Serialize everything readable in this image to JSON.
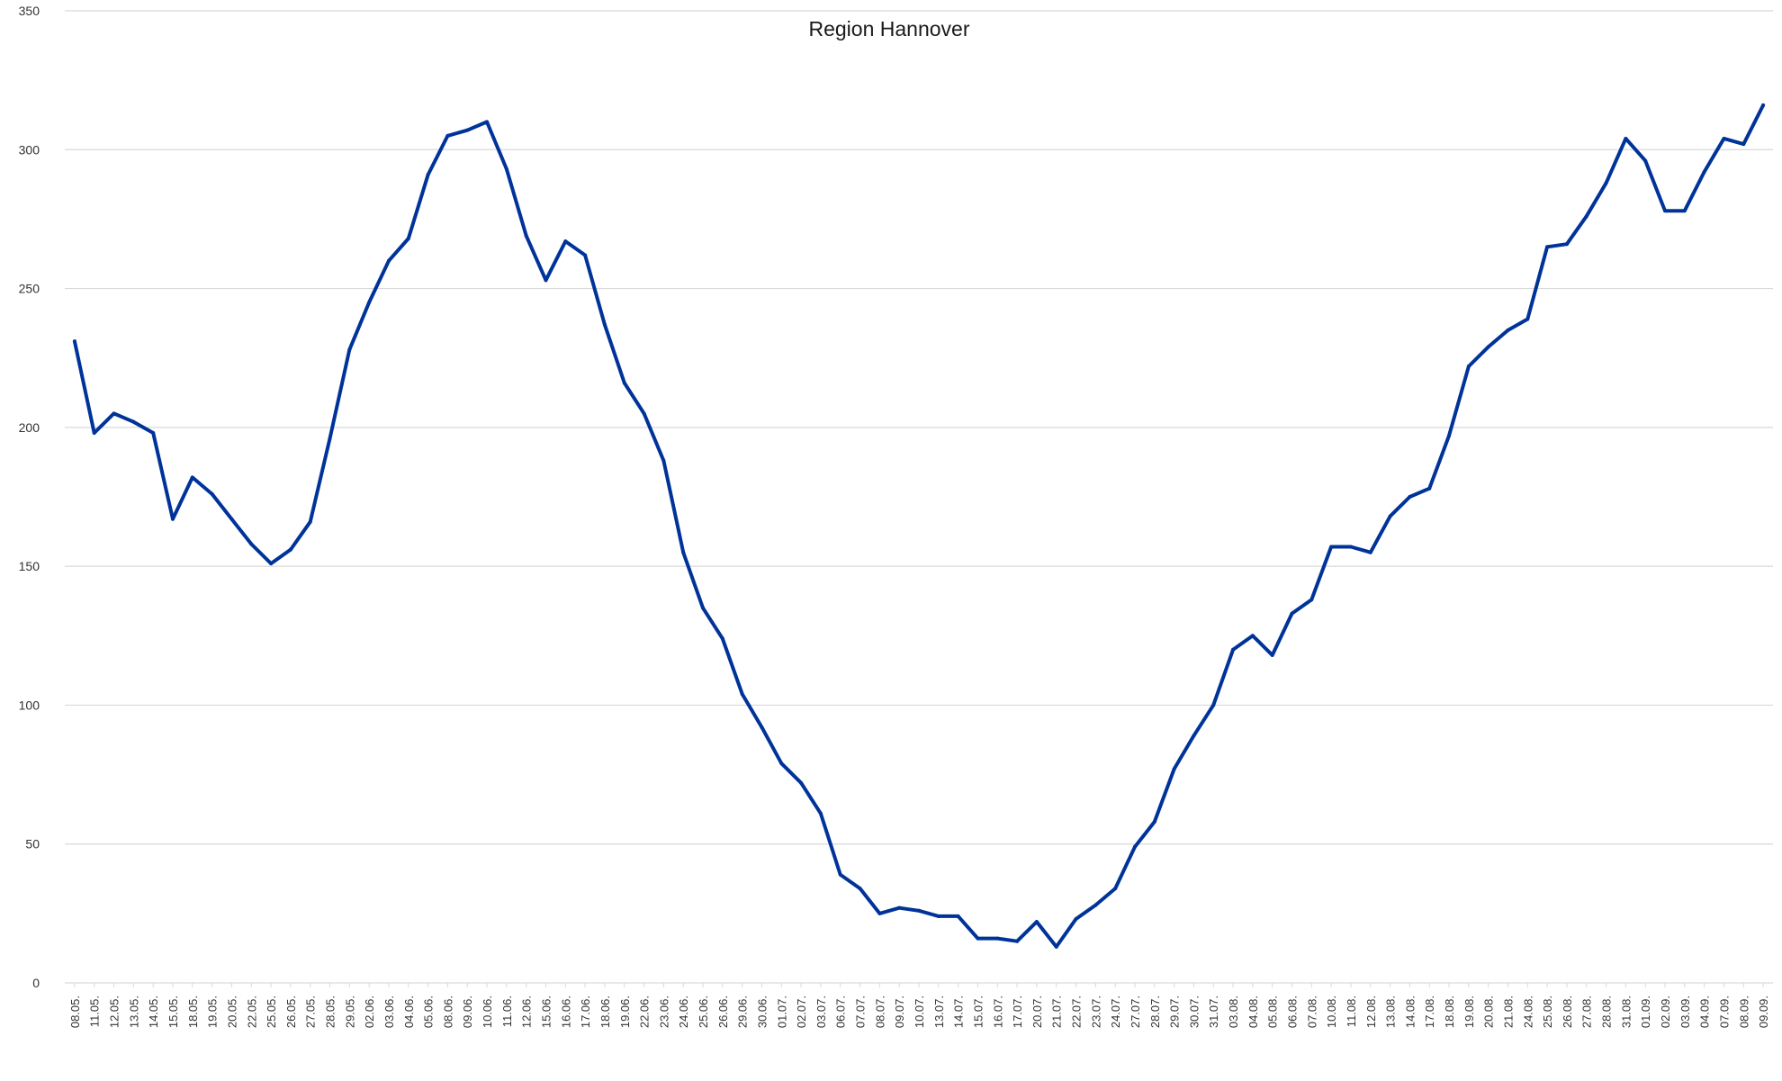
{
  "chart_data": {
    "type": "line",
    "title": "Region Hannover",
    "xlabel": "",
    "ylabel": "",
    "ylim": [
      0,
      350
    ],
    "yticks": [
      0,
      50,
      100,
      150,
      200,
      250,
      300,
      350
    ],
    "grid": true,
    "legend": "none",
    "colors": {
      "line": "#003399",
      "grid": "#d9d9d9"
    },
    "categories": [
      "08.05.",
      "11.05.",
      "12.05.",
      "13.05.",
      "14.05.",
      "15.05.",
      "18.05.",
      "19.05.",
      "20.05.",
      "22.05.",
      "25.05.",
      "26.05.",
      "27.05.",
      "28.05.",
      "29.05.",
      "02.06.",
      "03.06.",
      "04.06.",
      "05.06.",
      "08.06.",
      "09.06.",
      "10.06.",
      "11.06.",
      "12.06.",
      "15.06.",
      "16.06.",
      "17.06.",
      "18.06.",
      "19.06.",
      "22.06.",
      "23.06.",
      "24.06.",
      "25.06.",
      "26.06.",
      "29.06.",
      "30.06.",
      "01.07.",
      "02.07.",
      "03.07.",
      "06.07.",
      "07.07.",
      "08.07.",
      "09.07.",
      "10.07.",
      "13.07.",
      "14.07.",
      "15.07.",
      "16.07.",
      "17.07.",
      "20.07.",
      "21.07.",
      "22.07.",
      "23.07.",
      "24.07.",
      "27.07.",
      "28.07.",
      "29.07.",
      "30.07.",
      "31.07.",
      "03.08.",
      "04.08.",
      "05.08.",
      "06.08.",
      "07.08.",
      "10.08.",
      "11.08.",
      "12.08.",
      "13.08.",
      "14.08.",
      "17.08.",
      "18.08.",
      "19.08.",
      "20.08.",
      "21.08.",
      "24.08.",
      "25.08.",
      "26.08.",
      "27.08.",
      "28.08.",
      "31.08.",
      "01.09.",
      "02.09.",
      "03.09.",
      "04.09.",
      "07.09.",
      "08.09.",
      "09.09."
    ],
    "series": [
      {
        "values": [
          231,
          198,
          205,
          202,
          198,
          167,
          182,
          176,
          167,
          158,
          151,
          156,
          166,
          196,
          228,
          245,
          260,
          268,
          291,
          305,
          307,
          310,
          293,
          269,
          253,
          267,
          262,
          237,
          216,
          205,
          188,
          155,
          135,
          124,
          104,
          92,
          79,
          72,
          61,
          39,
          34,
          25,
          27,
          26,
          24,
          24,
          16,
          16,
          15,
          22,
          13,
          23,
          28,
          34,
          49,
          58,
          77,
          89,
          100,
          120,
          125,
          118,
          133,
          138,
          157,
          157,
          155,
          168,
          175,
          178,
          197,
          222,
          229,
          235,
          239,
          265,
          266,
          276,
          288,
          304,
          296,
          278,
          278,
          292,
          304,
          302,
          316
        ]
      }
    ]
  }
}
